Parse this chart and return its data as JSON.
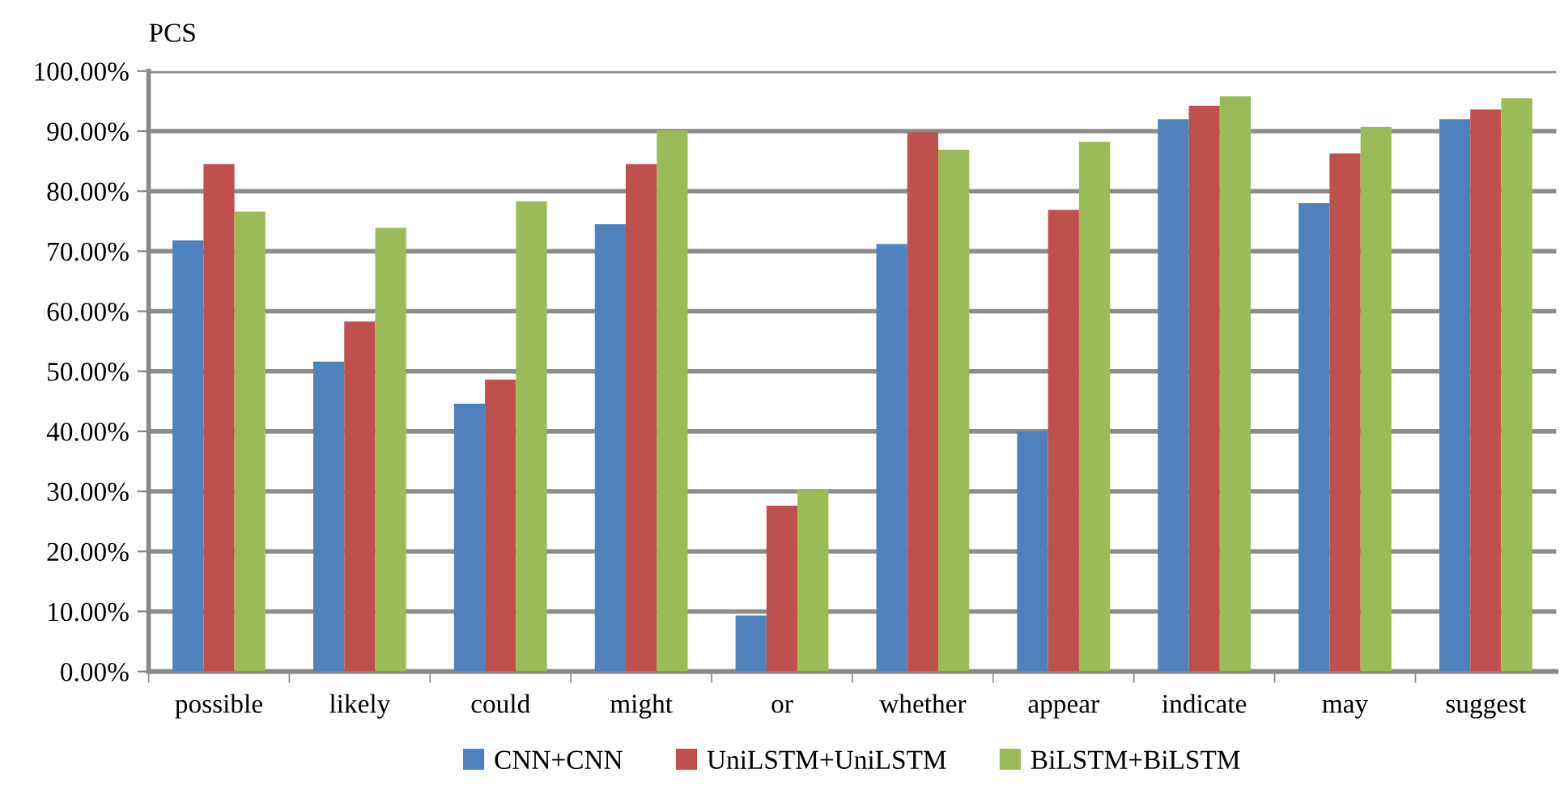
{
  "chart_data": {
    "type": "bar",
    "ylabel": "PCS",
    "categories": [
      "possible",
      "likely",
      "could",
      "might",
      "or",
      "whether",
      "appear",
      "indicate",
      "may",
      "suggest"
    ],
    "series": [
      {
        "name": "CNN+CNN",
        "color": "#4f81bd",
        "values": [
          71.8,
          51.6,
          44.6,
          74.5,
          9.3,
          71.2,
          40.0,
          92.0,
          78.0,
          92.0
        ]
      },
      {
        "name": "UniLSTM+UniLSTM",
        "color": "#c0504d",
        "values": [
          84.5,
          58.3,
          48.6,
          84.5,
          27.6,
          89.8,
          76.9,
          94.2,
          86.3,
          93.6
        ]
      },
      {
        "name": "BiLSTM+BiLSTM",
        "color": "#9bbb59",
        "values": [
          76.6,
          73.9,
          78.3,
          90.1,
          30.3,
          86.9,
          88.2,
          95.8,
          90.7,
          95.5
        ]
      }
    ],
    "ylim": [
      0,
      100
    ],
    "yticks": [
      {
        "value": 0,
        "label": "0.00%"
      },
      {
        "value": 10,
        "label": "10.00%"
      },
      {
        "value": 20,
        "label": "20.00%"
      },
      {
        "value": 30,
        "label": "30.00%"
      },
      {
        "value": 40,
        "label": "40.00%"
      },
      {
        "value": 50,
        "label": "50.00%"
      },
      {
        "value": 60,
        "label": "60.00%"
      },
      {
        "value": 70,
        "label": "70.00%"
      },
      {
        "value": 80,
        "label": "80.00%"
      },
      {
        "value": 90,
        "label": "90.00%"
      },
      {
        "value": 100,
        "label": "100.00%"
      }
    ],
    "grid": "y",
    "legend": "bottom"
  }
}
